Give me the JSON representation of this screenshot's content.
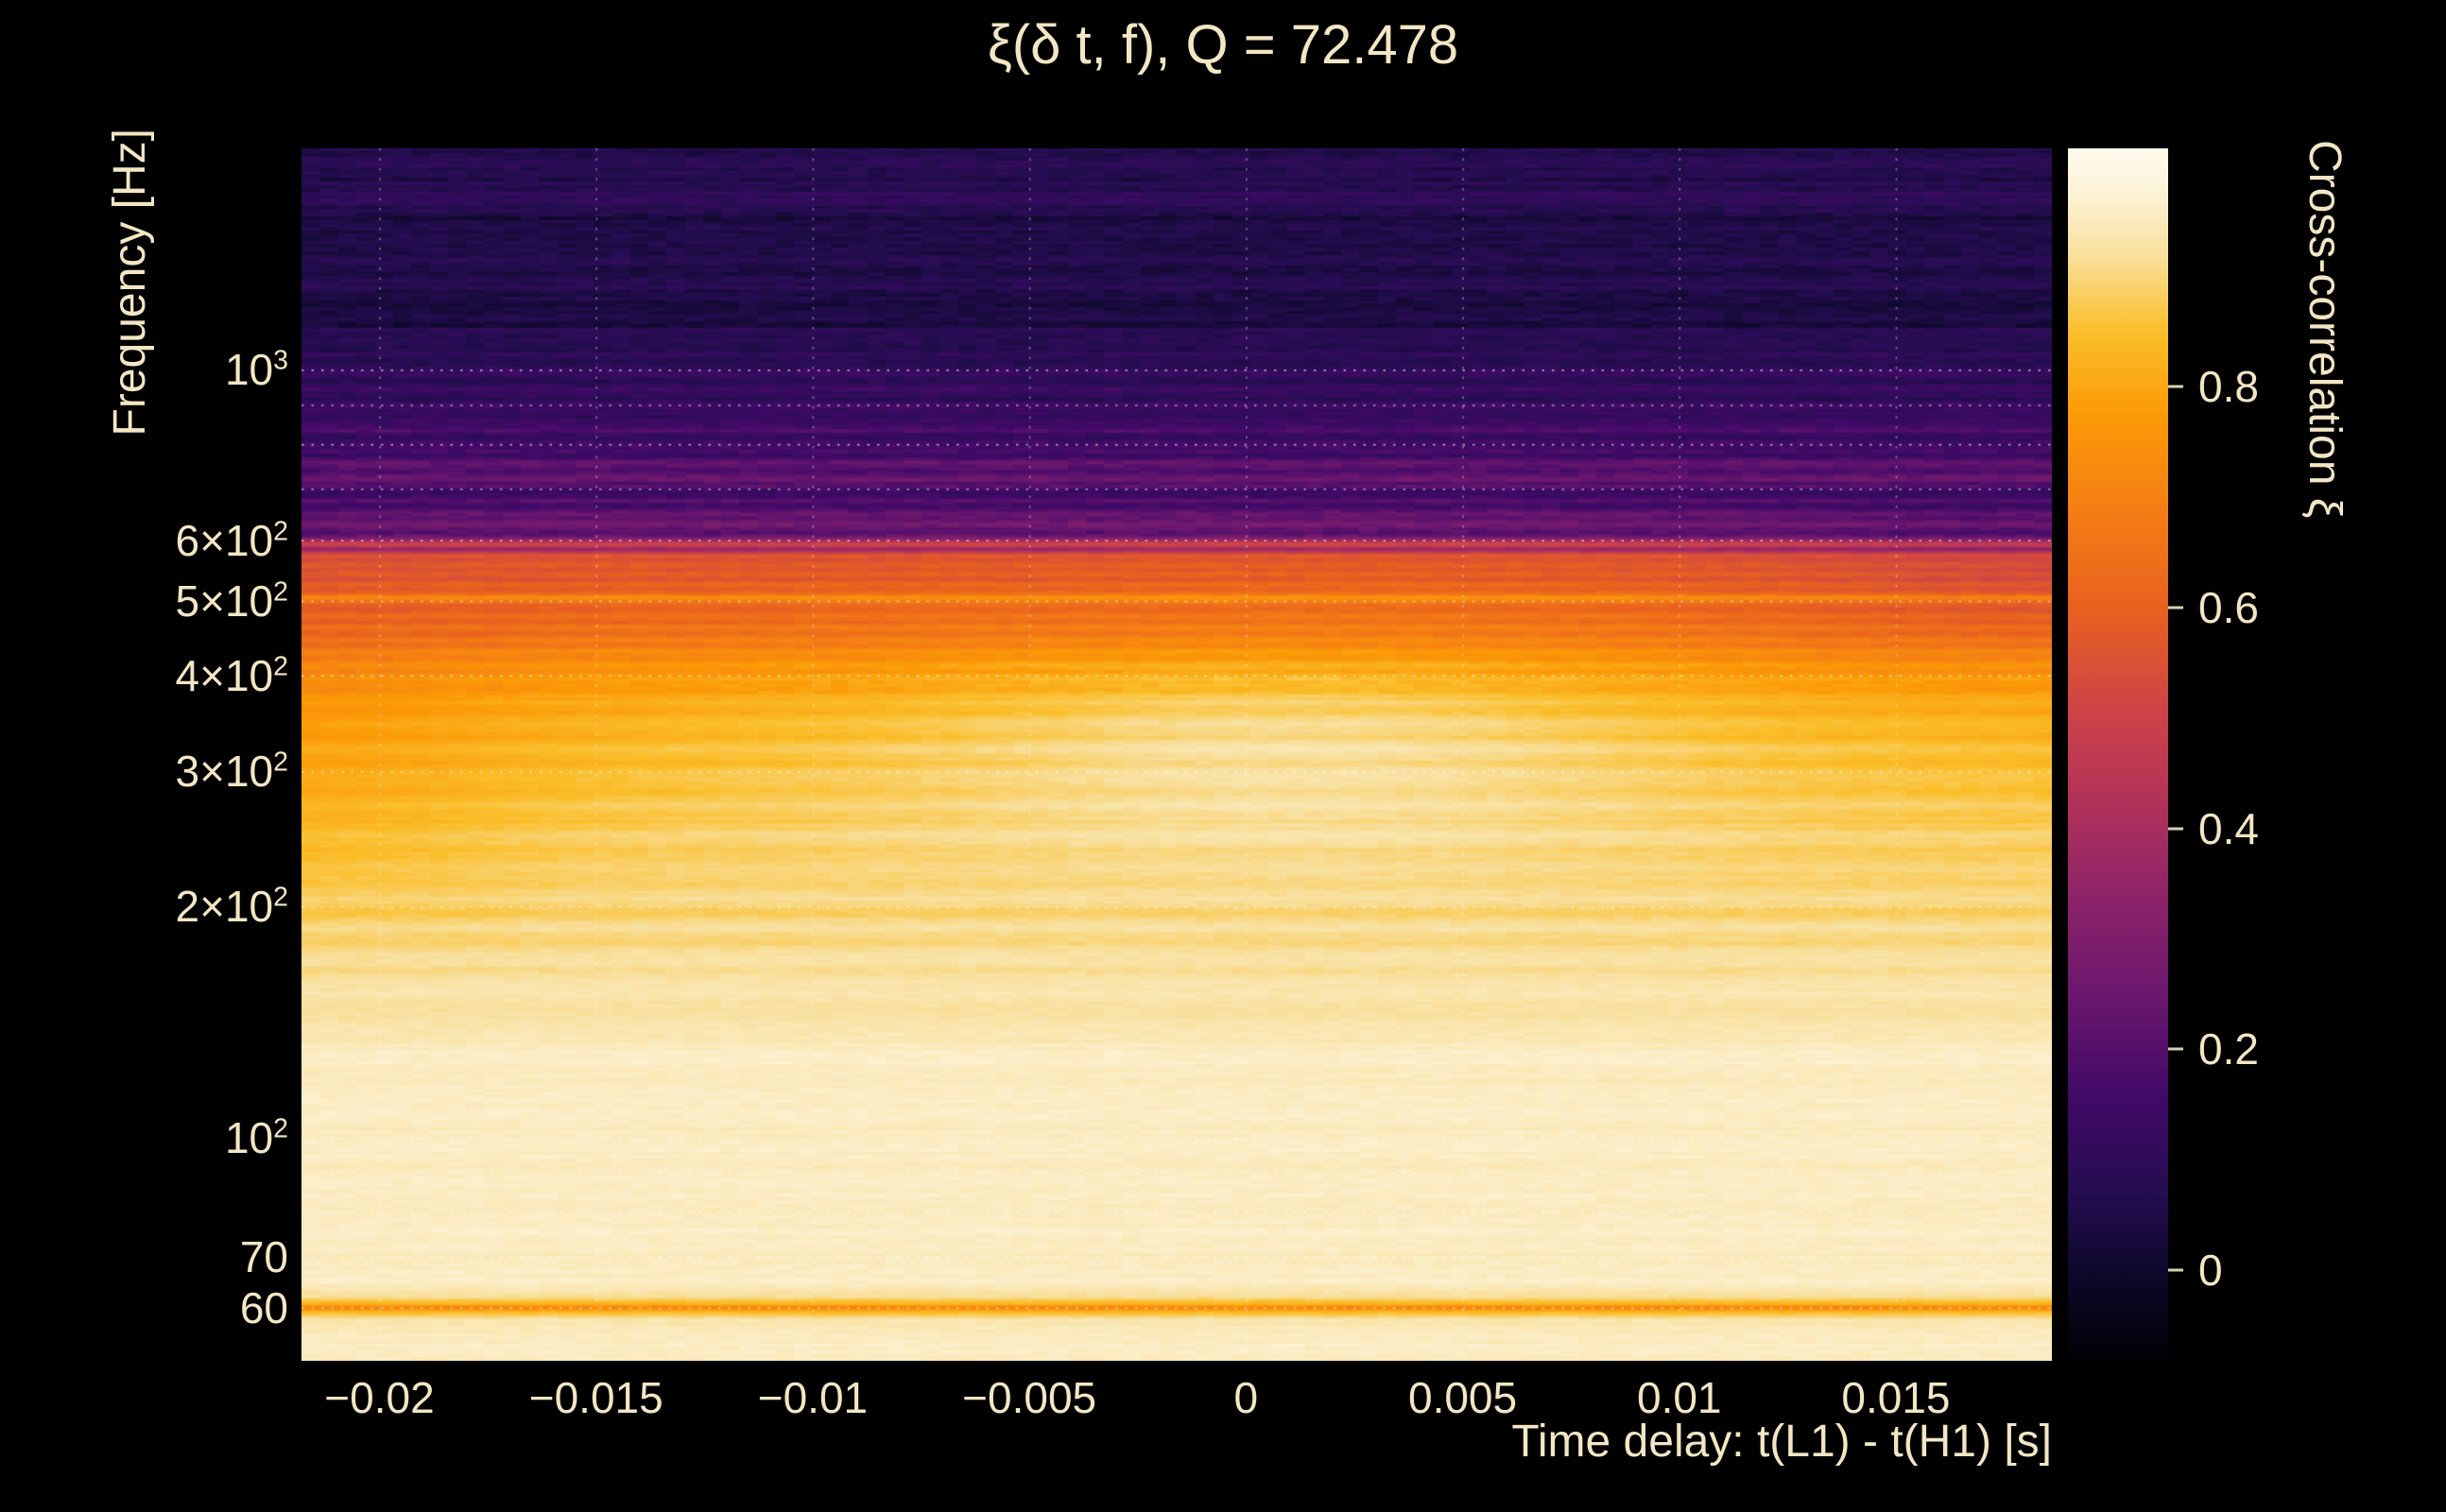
{
  "figure": {
    "background": "#000000",
    "text_color": "#f3e6c4"
  },
  "chart_data": {
    "type": "heatmap",
    "title": "ξ(δ t, f), Q = 72.478",
    "Q": 72.478,
    "xlabel": "Time delay: t(L1) - t(H1) [s]",
    "ylabel": "Frequency [Hz]",
    "colorbar_label": "Cross-correlation ξ",
    "x_range_s": [
      -0.0218,
      0.0186
    ],
    "x_ticks": [
      {
        "t": -0.02,
        "label": "−0.02"
      },
      {
        "t": -0.015,
        "label": "−0.015"
      },
      {
        "t": -0.01,
        "label": "−0.01"
      },
      {
        "t": -0.005,
        "label": "−0.005"
      },
      {
        "t": 0,
        "label": "0"
      },
      {
        "t": 0.005,
        "label": "0.005"
      },
      {
        "t": 0.01,
        "label": "0.01"
      },
      {
        "t": 0.015,
        "label": "0.015"
      }
    ],
    "y_scale": "log",
    "y_range_hz": [
      51.2,
      1943
    ],
    "y_ticks": [
      {
        "f": 1000,
        "mantissa": "10",
        "exponent": "3"
      },
      {
        "f": 600,
        "mantissa": "6×10",
        "exponent": "2"
      },
      {
        "f": 500,
        "mantissa": "5×10",
        "exponent": "2"
      },
      {
        "f": 400,
        "mantissa": "4×10",
        "exponent": "2"
      },
      {
        "f": 300,
        "mantissa": "3×10",
        "exponent": "2"
      },
      {
        "f": 200,
        "mantissa": "2×10",
        "exponent": "2"
      },
      {
        "f": 100,
        "mantissa": "10",
        "exponent": "2"
      },
      {
        "f": 70,
        "mantissa": "70",
        "exponent": ""
      },
      {
        "f": 60,
        "mantissa": "60",
        "exponent": ""
      }
    ],
    "grid_lines_hz": [
      60,
      70,
      80,
      90,
      100,
      200,
      300,
      400,
      500,
      600,
      700,
      800,
      900,
      1000
    ],
    "colorbar": {
      "range": [
        -0.082,
        1.016
      ],
      "ticks": [
        {
          "v": 0.8,
          "label": "0.8"
        },
        {
          "v": 0.6,
          "label": "0.6"
        },
        {
          "v": 0.4,
          "label": "0.4"
        },
        {
          "v": 0.2,
          "label": "0.2"
        },
        {
          "v": 0,
          "label": "0"
        }
      ]
    },
    "colormap_stops": [
      {
        "p": 0.0,
        "color": "#000004"
      },
      {
        "p": 0.07,
        "color": "#0d0829"
      },
      {
        "p": 0.14,
        "color": "#250d51"
      },
      {
        "p": 0.22,
        "color": "#420a68"
      },
      {
        "p": 0.3,
        "color": "#6a176e"
      },
      {
        "p": 0.38,
        "color": "#8c2369"
      },
      {
        "p": 0.46,
        "color": "#b1325a"
      },
      {
        "p": 0.54,
        "color": "#cf4446"
      },
      {
        "p": 0.62,
        "color": "#e8611f"
      },
      {
        "p": 0.7,
        "color": "#f57d15"
      },
      {
        "p": 0.78,
        "color": "#fb9a06"
      },
      {
        "p": 0.85,
        "color": "#fabf2c"
      },
      {
        "p": 0.91,
        "color": "#f8df9a"
      },
      {
        "p": 0.96,
        "color": "#fcf2d4"
      },
      {
        "p": 1.0,
        "color": "#fefaee"
      }
    ],
    "xi_profile_f_xi": [
      [
        51,
        0.95
      ],
      [
        55,
        0.96
      ],
      [
        58,
        0.93
      ],
      [
        59.4,
        0.82
      ],
      [
        60,
        0.7
      ],
      [
        60.6,
        0.82
      ],
      [
        62,
        0.92
      ],
      [
        65,
        0.96
      ],
      [
        70,
        0.95
      ],
      [
        75,
        0.96
      ],
      [
        80,
        0.95
      ],
      [
        85,
        0.96
      ],
      [
        90,
        0.95
      ],
      [
        96,
        0.96
      ],
      [
        103,
        0.95
      ],
      [
        110,
        0.96
      ],
      [
        118,
        0.95
      ],
      [
        127,
        0.96
      ],
      [
        136,
        0.94
      ],
      [
        146,
        0.92
      ],
      [
        156,
        0.94
      ],
      [
        165,
        0.91
      ],
      [
        172,
        0.93
      ],
      [
        180,
        0.89
      ],
      [
        188,
        0.92
      ],
      [
        196,
        0.88
      ],
      [
        205,
        0.91
      ],
      [
        215,
        0.88
      ],
      [
        225,
        0.9
      ],
      [
        236,
        0.87
      ],
      [
        247,
        0.9
      ],
      [
        258,
        0.86
      ],
      [
        270,
        0.88
      ],
      [
        282,
        0.85
      ],
      [
        295,
        0.87
      ],
      [
        308,
        0.83
      ],
      [
        320,
        0.86
      ],
      [
        333,
        0.82
      ],
      [
        346,
        0.84
      ],
      [
        358,
        0.8
      ],
      [
        370,
        0.82
      ],
      [
        382,
        0.77
      ],
      [
        394,
        0.79
      ],
      [
        405,
        0.74
      ],
      [
        413,
        0.77
      ],
      [
        421,
        0.7
      ],
      [
        429,
        0.74
      ],
      [
        437,
        0.66
      ],
      [
        445,
        0.7
      ],
      [
        453,
        0.63
      ],
      [
        461,
        0.67
      ],
      [
        470,
        0.61
      ],
      [
        478,
        0.64
      ],
      [
        486,
        0.59
      ],
      [
        494,
        0.62
      ],
      [
        500,
        0.67
      ],
      [
        505,
        0.74
      ],
      [
        511,
        0.62
      ],
      [
        518,
        0.57
      ],
      [
        526,
        0.62
      ],
      [
        534,
        0.55
      ],
      [
        542,
        0.6
      ],
      [
        550,
        0.55
      ],
      [
        558,
        0.59
      ],
      [
        566,
        0.54
      ],
      [
        573,
        0.58
      ],
      [
        579,
        0.46
      ],
      [
        584,
        0.34
      ],
      [
        589,
        0.47
      ],
      [
        594,
        0.52
      ],
      [
        600,
        0.36
      ],
      [
        606,
        0.24
      ],
      [
        613,
        0.18
      ],
      [
        621,
        0.24
      ],
      [
        630,
        0.28
      ],
      [
        640,
        0.21
      ],
      [
        651,
        0.26
      ],
      [
        663,
        0.17
      ],
      [
        676,
        0.21
      ],
      [
        690,
        0.14
      ],
      [
        705,
        0.19
      ],
      [
        721,
        0.24
      ],
      [
        738,
        0.17
      ],
      [
        756,
        0.21
      ],
      [
        774,
        0.14
      ],
      [
        793,
        0.18
      ],
      [
        813,
        0.12
      ],
      [
        833,
        0.18
      ],
      [
        854,
        0.14
      ],
      [
        876,
        0.11
      ],
      [
        898,
        0.15
      ],
      [
        920,
        0.09
      ],
      [
        943,
        0.13
      ],
      [
        966,
        0.08
      ],
      [
        990,
        0.12
      ],
      [
        1015,
        0.07
      ],
      [
        1042,
        0.11
      ],
      [
        1076,
        0.06
      ],
      [
        1112,
        0.1
      ],
      [
        1150,
        0.03
      ],
      [
        1192,
        0.05
      ],
      [
        1238,
        0.03
      ],
      [
        1288,
        0.09
      ],
      [
        1340,
        0.05
      ],
      [
        1394,
        0.08
      ],
      [
        1450,
        0.03
      ],
      [
        1508,
        0.06
      ],
      [
        1568,
        0.03
      ],
      [
        1630,
        0.08
      ],
      [
        1695,
        0.1
      ],
      [
        1762,
        0.06
      ],
      [
        1832,
        0.09
      ],
      [
        1905,
        0.05
      ],
      [
        1950,
        0.07
      ]
    ],
    "time_modulation": {
      "center_bump": {
        "t0": 0.001,
        "sigma_t": 0.0095,
        "logf0": 2.53,
        "sigma_logf": 0.16,
        "amp": 0.08
      },
      "left_edge_dip": {
        "t0": -0.0218,
        "sigma_t": 0.005,
        "logf0": 2.5,
        "sigma_logf": 0.2,
        "amp": -0.05
      },
      "right_edge_dip": {
        "t0": 0.0186,
        "sigma_t": 0.006,
        "logf0": 2.72,
        "sigma_logf": 0.1,
        "amp": -0.04
      }
    },
    "texture_noise": {
      "cols": 96,
      "amp_dark": 0.05,
      "amp_mid": 0.03,
      "amp_light": 0.016
    }
  }
}
